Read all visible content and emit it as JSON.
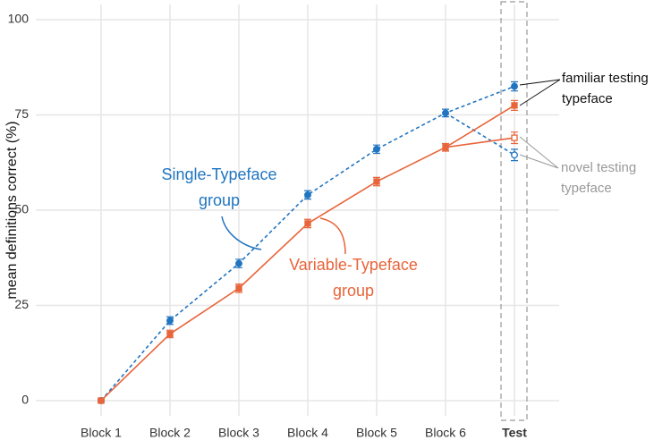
{
  "chart_data": {
    "type": "line",
    "y_label": "mean definitions correct (%)",
    "categories": [
      "Block 1",
      "Block 2",
      "Block 3",
      "Block 4",
      "Block 5",
      "Block 6",
      "Test"
    ],
    "ylim": [
      -4,
      104
    ],
    "yticks": [
      0,
      25,
      50,
      75,
      100
    ],
    "grid": true,
    "series": [
      {
        "name": "Single-Typeface group",
        "color": "#2175c0",
        "dashed": true,
        "marker": "circle",
        "values": [
          0,
          21,
          36,
          54,
          66,
          75.5,
          82.5
        ],
        "errors": [
          0.4,
          1.0,
          1.1,
          1.1,
          1.1,
          1.0,
          1.2
        ],
        "novel_value": 64.5,
        "novel_error": 1.5
      },
      {
        "name": "Variable-Typeface group",
        "color": "#e8643a",
        "dashed": false,
        "marker": "square",
        "values": [
          0,
          17.5,
          29.5,
          46.5,
          57.5,
          66.5,
          77.5
        ],
        "errors": [
          0.4,
          1.0,
          1.1,
          1.1,
          1.1,
          1.0,
          1.3
        ],
        "novel_value": 69,
        "novel_error": 1.5
      }
    ],
    "annotations": {
      "familiar": "familiar testing typeface",
      "novel": "novel testing typeface"
    }
  }
}
